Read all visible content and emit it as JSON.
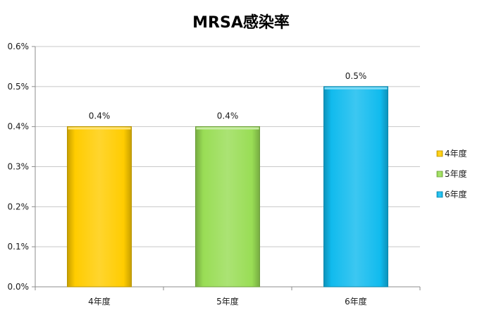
{
  "chart_data": {
    "type": "bar",
    "title": "MRSA感染率",
    "xlabel": "",
    "ylabel": "",
    "categories": [
      "4年度",
      "5年度",
      "6年度"
    ],
    "values": [
      0.4,
      0.4,
      0.5
    ],
    "data_labels": [
      "0.4%",
      "0.4%",
      "0.5%"
    ],
    "ylim": [
      0,
      0.6
    ],
    "yticks": [
      0,
      0.1,
      0.2,
      0.3,
      0.4,
      0.5,
      0.6
    ],
    "ytick_labels": [
      "0.0%",
      "0.1%",
      "0.2%",
      "0.3%",
      "0.4%",
      "0.5%",
      "0.6%"
    ],
    "grid": true,
    "legend": {
      "position": "right",
      "entries": [
        "4年度",
        "5年度",
        "6年度"
      ]
    },
    "colors": [
      "#ffcc00",
      "#99dd55",
      "#11bbee"
    ]
  }
}
